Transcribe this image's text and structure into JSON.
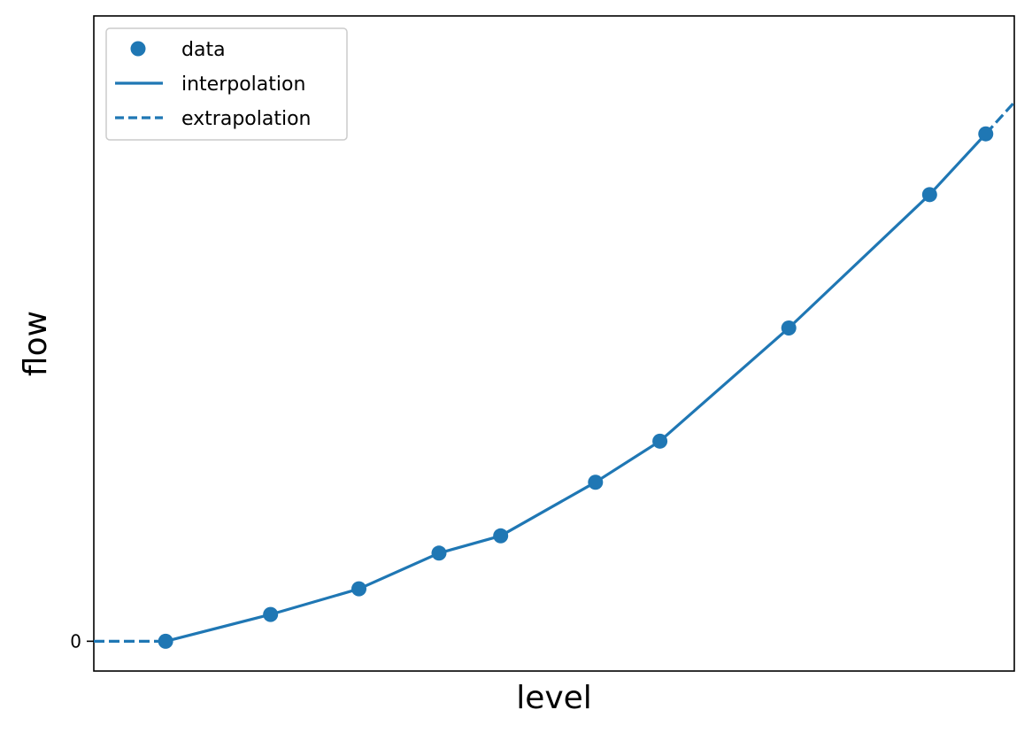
{
  "chart_data": {
    "type": "line",
    "title": "",
    "xlabel": "level",
    "ylabel": "flow",
    "grid": false,
    "legend_position": "top-left",
    "y_ticks": [
      {
        "value": 0,
        "label": "0"
      }
    ],
    "xlim": [
      0.0,
      1.0
    ],
    "ylim": [
      -0.05,
      1.05
    ],
    "colors": {
      "series": "#1f77b4",
      "frame": "#000000"
    },
    "series": [
      {
        "name": "data",
        "kind": "scatter",
        "x": [
          0.078,
          0.192,
          0.288,
          0.375,
          0.442,
          0.545,
          0.615,
          0.755,
          0.908,
          0.969
        ],
        "y": [
          0.0,
          0.045,
          0.088,
          0.148,
          0.177,
          0.267,
          0.336,
          0.526,
          0.75,
          0.852
        ]
      },
      {
        "name": "interpolation",
        "kind": "line",
        "style": "solid",
        "x": [
          0.078,
          0.192,
          0.288,
          0.375,
          0.442,
          0.545,
          0.615,
          0.755,
          0.908,
          0.969
        ],
        "y": [
          0.0,
          0.045,
          0.088,
          0.148,
          0.177,
          0.267,
          0.336,
          0.526,
          0.75,
          0.852
        ]
      },
      {
        "name": "extrapolation",
        "kind": "line",
        "style": "dashed",
        "segments": [
          {
            "x": [
              0.0,
              0.078
            ],
            "y": [
              0.0,
              0.0
            ]
          },
          {
            "x": [
              0.969,
              1.0
            ],
            "y": [
              0.852,
              0.905
            ]
          }
        ]
      }
    ]
  }
}
